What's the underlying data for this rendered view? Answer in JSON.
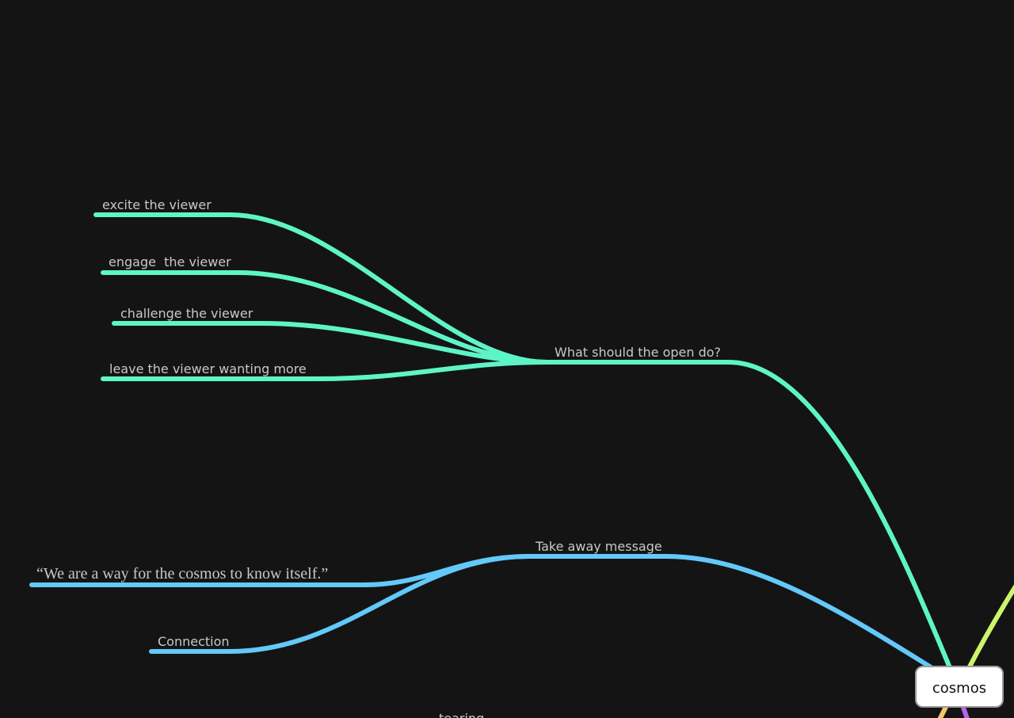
{
  "root": {
    "label": "cosmos"
  },
  "nodes": [
    {
      "label": "What should the open do?"
    },
    {
      "label": "excite the viewer"
    },
    {
      "label": "engage  the viewer"
    },
    {
      "label": "challenge the viewer"
    },
    {
      "label": "leave the viewer wanting more"
    },
    {
      "label": "Take away message"
    },
    {
      "label": "“We are a way for the cosmos to know itself.”"
    },
    {
      "label": "Connection"
    },
    {
      "label": "tearing"
    }
  ]
}
